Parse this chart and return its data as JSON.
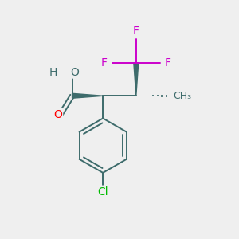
{
  "background_color": "#efefef",
  "bond_color": "#3d6b6b",
  "bond_width": 1.4,
  "atom_colors": {
    "O_carbonyl": "#ff0000",
    "O_hydroxyl": "#3d6b6b",
    "H": "#3d6b6b",
    "F": "#cc00cc",
    "Cl": "#00bb00"
  },
  "font_size_atom": 10,
  "font_size_small": 9,
  "figsize": [
    3.0,
    3.0
  ],
  "dpi": 100,
  "xlim": [
    0,
    10
  ],
  "ylim": [
    0,
    10
  ]
}
